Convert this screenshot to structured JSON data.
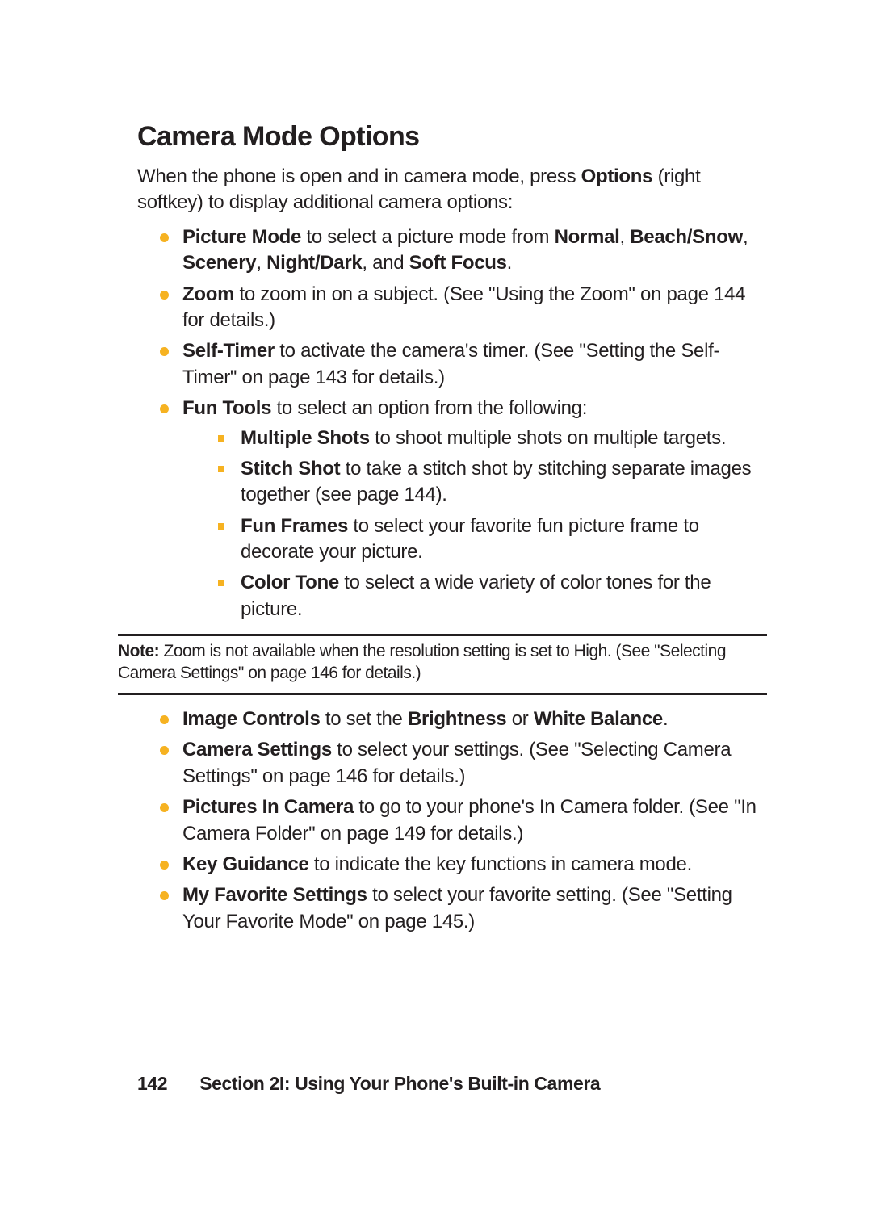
{
  "colors": {
    "text": "#231f20",
    "background": "#ffffff",
    "bullet_level1": "#f6b221",
    "bullet_level2": "#f6b221",
    "rule": "#231f20"
  },
  "typography": {
    "body_fontsize_pt": 18,
    "title_fontsize_pt": 26,
    "note_fontsize_pt": 16,
    "footer_fontsize_pt": 17
  },
  "title": "Camera Mode Options",
  "intro": {
    "pre": "When the phone is open and in camera mode, press ",
    "bold": "Options",
    "post": " (right softkey) to display additional camera options:"
  },
  "items1": {
    "picture_mode": {
      "b1": "Picture Mode",
      "t1": " to select a picture mode from ",
      "b2": "Normal",
      "t2": ", ",
      "b3": "Beach/Snow",
      "t3": ", ",
      "b4": "Scenery",
      "t4": ", ",
      "b5": "Night/Dark",
      "t5": ", and ",
      "b6": "Soft Focus",
      "t6": "."
    },
    "zoom": {
      "b1": "Zoom",
      "t1": " to zoom in on a subject. (See \"Using the Zoom\" on page 144 for details.)"
    },
    "self_timer": {
      "b1": "Self-Timer",
      "t1": " to activate the camera's timer. (See \"Setting the Self-Timer\" on page 143 for details.)"
    },
    "fun_tools": {
      "b1": "Fun Tools",
      "t1": " to select an option from the following:"
    }
  },
  "fun_sub": {
    "multiple_shots": {
      "b1": "Multiple Shots",
      "t1": " to shoot multiple shots on multiple targets."
    },
    "stitch_shot": {
      "b1": "Stitch Shot",
      "t1": " to take a stitch shot by stitching separate images together (see page 144)."
    },
    "fun_frames": {
      "b1": "Fun Frames",
      "t1": " to select your favorite fun picture frame to decorate your picture."
    },
    "color_tone": {
      "b1": "Color Tone",
      "t1": " to select a wide variety of color tones for the picture."
    }
  },
  "note": {
    "label": "Note:",
    "text": " Zoom is not available when the resolution setting is set to High. (See \"Selecting Camera Settings\" on page 146 for details.)"
  },
  "items2": {
    "image_controls": {
      "b1": "Image Controls",
      "t1": " to set the ",
      "b2": "Brightness",
      "t2": " or ",
      "b3": "White Balance",
      "t3": "."
    },
    "camera_settings": {
      "b1": "Camera Settings",
      "t1": " to select your settings. (See \"Selecting Camera Settings\" on page 146 for details.)"
    },
    "pictures_in_camera": {
      "b1": "Pictures In Camera",
      "t1": " to go to your phone's In Camera folder. (See \"In Camera Folder\" on page 149 for details.)"
    },
    "key_guidance": {
      "b1": "Key Guidance",
      "t1": " to indicate the key functions in camera mode."
    },
    "my_favorite": {
      "b1": "My Favorite Settings",
      "t1": " to select your favorite setting. (See \"Setting Your Favorite Mode\" on page 145.)"
    }
  },
  "footer": {
    "page_number": "142",
    "section": "Section 2I: Using Your Phone's Built-in Camera"
  }
}
